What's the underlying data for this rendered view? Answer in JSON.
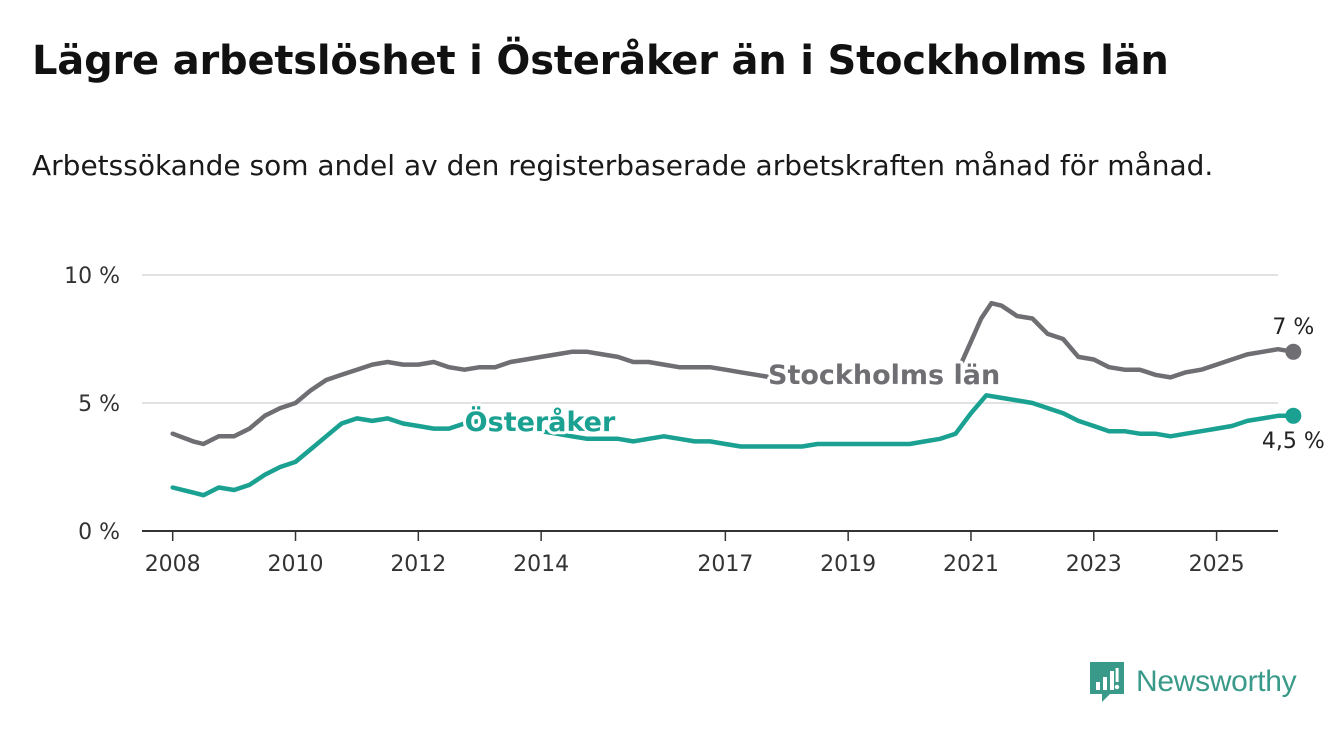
{
  "title": "Lägre arbetslöshet i Österåker än i Stockholms län",
  "subtitle": "Arbetssökande som andel av den registerbaserade arbetskraften månad för månad.",
  "brand": {
    "name": "Newsworthy",
    "icon": "newsworthy-chart-icon",
    "color": "#3a9a8a"
  },
  "chart_data": {
    "type": "line",
    "xlabel": "",
    "ylabel": "",
    "x_ticks": [
      "2008",
      "2010",
      "2012",
      "2014",
      "2017",
      "2019",
      "2021",
      "2023",
      "2025"
    ],
    "xlim": [
      "2007-07",
      "2026-01"
    ],
    "ylim": [
      0,
      10
    ],
    "y_ticks": [
      {
        "value": 0,
        "label": "0 %"
      },
      {
        "value": 5,
        "label": "5 %"
      },
      {
        "value": 10,
        "label": "10 %"
      }
    ],
    "grid": true,
    "series": [
      {
        "name": "Stockholms län",
        "color": "#6e6e73",
        "end_label": "7 %",
        "points": [
          [
            "2008-01",
            3.8
          ],
          [
            "2008-05",
            3.5
          ],
          [
            "2008-07",
            3.4
          ],
          [
            "2008-10",
            3.7
          ],
          [
            "2009-01",
            3.7
          ],
          [
            "2009-04",
            4.0
          ],
          [
            "2009-07",
            4.5
          ],
          [
            "2009-10",
            4.8
          ],
          [
            "2010-01",
            5.0
          ],
          [
            "2010-04",
            5.5
          ],
          [
            "2010-07",
            5.9
          ],
          [
            "2010-10",
            6.1
          ],
          [
            "2011-01",
            6.3
          ],
          [
            "2011-04",
            6.5
          ],
          [
            "2011-07",
            6.6
          ],
          [
            "2011-10",
            6.5
          ],
          [
            "2012-01",
            6.5
          ],
          [
            "2012-04",
            6.6
          ],
          [
            "2012-07",
            6.4
          ],
          [
            "2012-10",
            6.3
          ],
          [
            "2013-01",
            6.4
          ],
          [
            "2013-04",
            6.4
          ],
          [
            "2013-07",
            6.6
          ],
          [
            "2013-10",
            6.7
          ],
          [
            "2014-01",
            6.8
          ],
          [
            "2014-04",
            6.9
          ],
          [
            "2014-07",
            7.0
          ],
          [
            "2014-10",
            7.0
          ],
          [
            "2015-01",
            6.9
          ],
          [
            "2015-04",
            6.8
          ],
          [
            "2015-07",
            6.6
          ],
          [
            "2015-10",
            6.6
          ],
          [
            "2016-01",
            6.5
          ],
          [
            "2016-04",
            6.4
          ],
          [
            "2016-07",
            6.4
          ],
          [
            "2016-10",
            6.4
          ],
          [
            "2017-01",
            6.3
          ],
          [
            "2017-04",
            6.2
          ],
          [
            "2017-07",
            6.1
          ],
          [
            "2017-10",
            6.0
          ],
          [
            "2018-01",
            6.1
          ]
        ],
        "points_b": [
          [
            "2020-11",
            6.5
          ],
          [
            "2021-01",
            7.4
          ],
          [
            "2021-03",
            8.3
          ],
          [
            "2021-05",
            8.9
          ],
          [
            "2021-07",
            8.8
          ],
          [
            "2021-10",
            8.4
          ],
          [
            "2022-01",
            8.3
          ],
          [
            "2022-04",
            7.7
          ],
          [
            "2022-07",
            7.5
          ],
          [
            "2022-10",
            6.8
          ],
          [
            "2023-01",
            6.7
          ],
          [
            "2023-04",
            6.4
          ],
          [
            "2023-07",
            6.3
          ],
          [
            "2023-10",
            6.3
          ],
          [
            "2024-01",
            6.1
          ],
          [
            "2024-04",
            6.0
          ],
          [
            "2024-07",
            6.2
          ],
          [
            "2024-10",
            6.3
          ],
          [
            "2025-01",
            6.5
          ],
          [
            "2025-04",
            6.7
          ],
          [
            "2025-07",
            6.9
          ],
          [
            "2025-10",
            7.0
          ],
          [
            "2026-01",
            7.1
          ],
          [
            "2026-04",
            7.0
          ]
        ]
      },
      {
        "name": "Österåker",
        "color": "#1aa191",
        "end_label": "4,5 %",
        "points": [
          [
            "2008-01",
            1.7
          ],
          [
            "2008-05",
            1.5
          ],
          [
            "2008-07",
            1.4
          ],
          [
            "2008-10",
            1.7
          ],
          [
            "2009-01",
            1.6
          ],
          [
            "2009-04",
            1.8
          ],
          [
            "2009-07",
            2.2
          ],
          [
            "2009-10",
            2.5
          ],
          [
            "2010-01",
            2.7
          ],
          [
            "2010-04",
            3.2
          ],
          [
            "2010-07",
            3.7
          ],
          [
            "2010-10",
            4.2
          ],
          [
            "2011-01",
            4.4
          ],
          [
            "2011-04",
            4.3
          ],
          [
            "2011-07",
            4.4
          ],
          [
            "2011-10",
            4.2
          ],
          [
            "2012-01",
            4.1
          ],
          [
            "2012-04",
            4.0
          ],
          [
            "2012-07",
            4.0
          ],
          [
            "2012-10",
            4.2
          ],
          [
            "2013-01",
            4.3
          ],
          [
            "2013-04",
            4.2
          ],
          [
            "2013-07",
            4.1
          ],
          [
            "2013-10",
            4.0
          ],
          [
            "2014-01",
            3.9
          ],
          [
            "2014-04",
            3.8
          ],
          [
            "2014-07",
            3.7
          ],
          [
            "2014-10",
            3.6
          ],
          [
            "2015-01",
            3.6
          ],
          [
            "2015-04",
            3.6
          ],
          [
            "2015-07",
            3.5
          ],
          [
            "2015-10",
            3.6
          ],
          [
            "2016-01",
            3.7
          ],
          [
            "2016-04",
            3.6
          ],
          [
            "2016-07",
            3.5
          ],
          [
            "2016-10",
            3.5
          ],
          [
            "2017-01",
            3.4
          ],
          [
            "2017-04",
            3.3
          ],
          [
            "2017-07",
            3.3
          ],
          [
            "2017-10",
            3.3
          ],
          [
            "2018-01",
            3.3
          ],
          [
            "2018-04",
            3.3
          ],
          [
            "2018-07",
            3.4
          ],
          [
            "2018-10",
            3.4
          ],
          [
            "2019-01",
            3.4
          ],
          [
            "2019-04",
            3.4
          ],
          [
            "2019-07",
            3.4
          ],
          [
            "2019-10",
            3.4
          ],
          [
            "2020-01",
            3.4
          ],
          [
            "2020-04",
            3.5
          ],
          [
            "2020-07",
            3.6
          ],
          [
            "2020-10",
            3.8
          ],
          [
            "2021-01",
            4.6
          ],
          [
            "2021-04",
            5.3
          ],
          [
            "2021-07",
            5.2
          ],
          [
            "2021-10",
            5.1
          ],
          [
            "2022-01",
            5.0
          ],
          [
            "2022-04",
            4.8
          ],
          [
            "2022-07",
            4.6
          ],
          [
            "2022-10",
            4.3
          ],
          [
            "2023-01",
            4.1
          ],
          [
            "2023-04",
            3.9
          ],
          [
            "2023-07",
            3.9
          ],
          [
            "2023-10",
            3.8
          ],
          [
            "2024-01",
            3.8
          ],
          [
            "2024-04",
            3.7
          ],
          [
            "2024-07",
            3.8
          ],
          [
            "2024-10",
            3.9
          ],
          [
            "2025-01",
            4.0
          ],
          [
            "2025-04",
            4.1
          ],
          [
            "2025-07",
            4.3
          ],
          [
            "2025-10",
            4.4
          ],
          [
            "2026-01",
            4.5
          ],
          [
            "2026-04",
            4.5
          ]
        ]
      }
    ]
  }
}
